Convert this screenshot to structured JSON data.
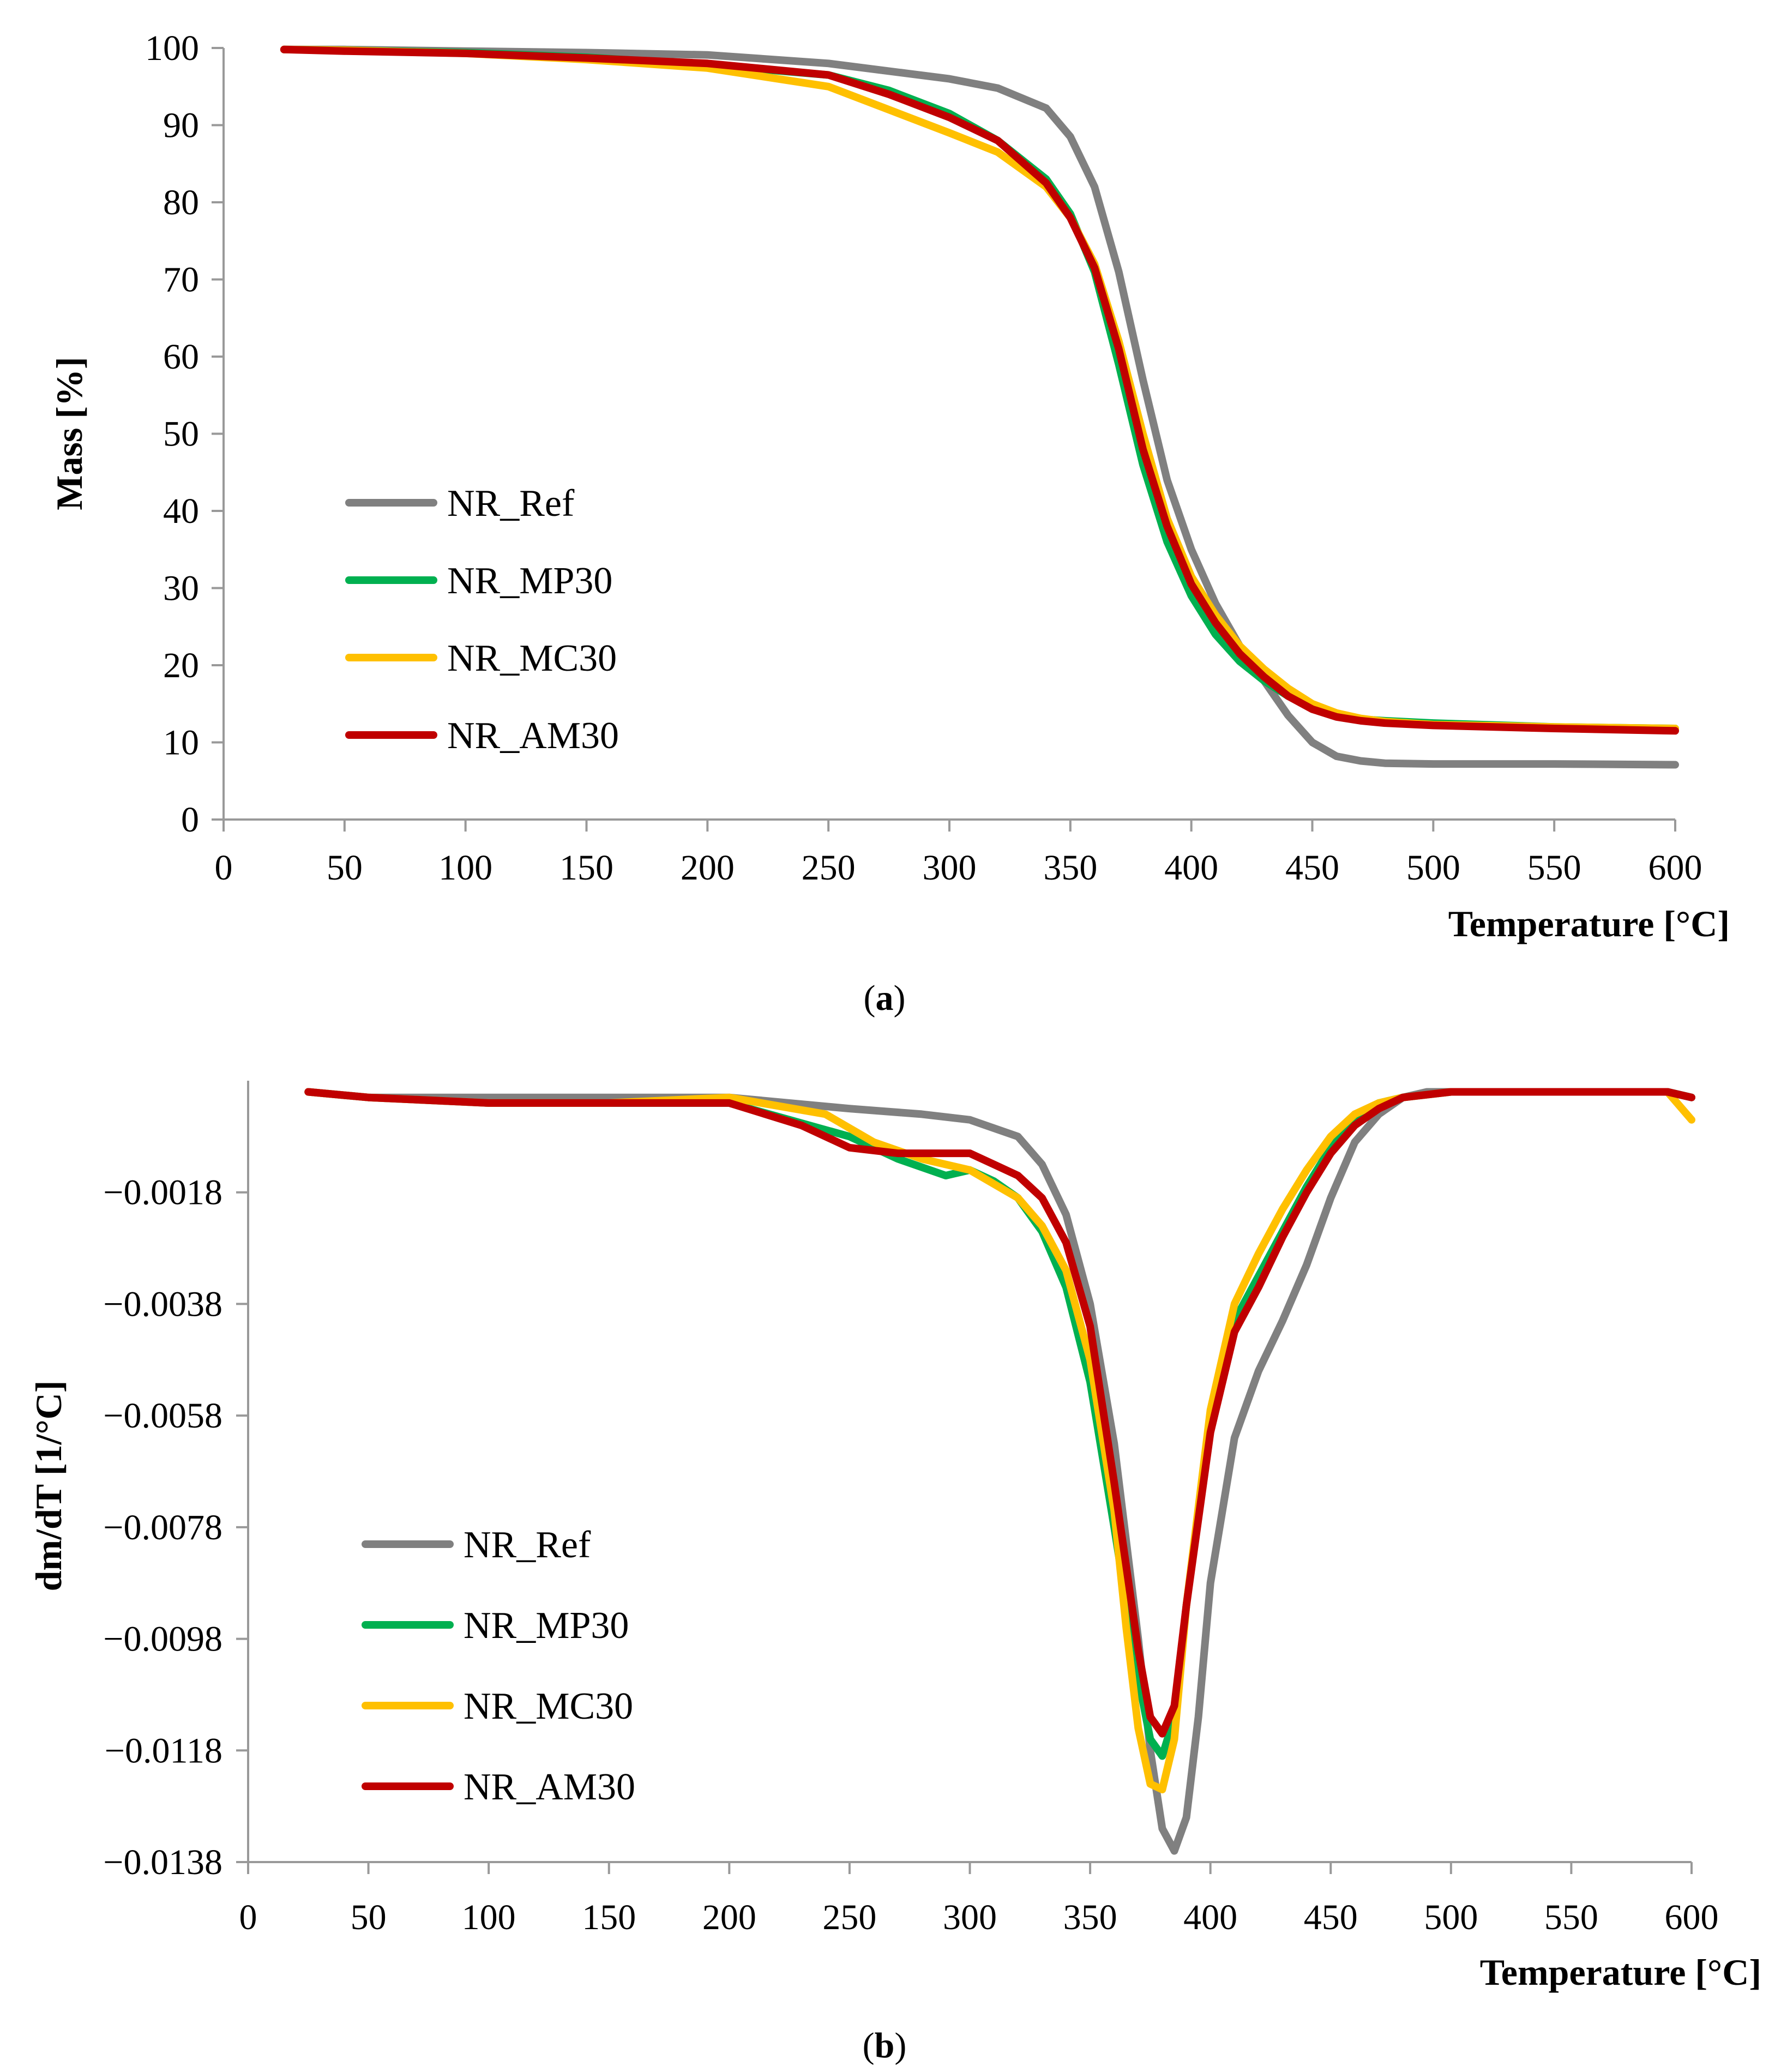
{
  "chart_data": [
    {
      "id": "a",
      "type": "line",
      "caption": "(a)",
      "caption_letter": "a",
      "xlabel": "Temperature [°C]",
      "ylabel": "Mass [%]",
      "xlim": [
        0,
        600
      ],
      "ylim": [
        0,
        100
      ],
      "xticks": [
        0,
        50,
        100,
        150,
        200,
        250,
        300,
        350,
        400,
        450,
        500,
        550,
        600
      ],
      "yticks": [
        0,
        10,
        20,
        30,
        40,
        50,
        60,
        70,
        80,
        90,
        100
      ],
      "ytick_labels": [
        "0",
        "10",
        "20",
        "30",
        "40",
        "50",
        "60",
        "70",
        "80",
        "90",
        "100"
      ],
      "legend_position": "center-left",
      "series": [
        {
          "name": "NR_Ref",
          "color": "#808080",
          "x": [
            25,
            50,
            100,
            150,
            200,
            250,
            300,
            320,
            340,
            350,
            360,
            370,
            380,
            390,
            400,
            410,
            420,
            430,
            440,
            450,
            460,
            470,
            480,
            500,
            550,
            600
          ],
          "y": [
            99.8,
            99.8,
            99.6,
            99.4,
            99.1,
            98.0,
            96.0,
            94.8,
            92.2,
            88.5,
            82.0,
            71.0,
            57.0,
            44.0,
            35.0,
            28.0,
            22.5,
            18.0,
            13.5,
            10.0,
            8.2,
            7.6,
            7.3,
            7.2,
            7.2,
            7.1
          ]
        },
        {
          "name": "NR_MP30",
          "color": "#00b050",
          "x": [
            25,
            50,
            100,
            150,
            200,
            250,
            275,
            300,
            320,
            340,
            350,
            360,
            370,
            380,
            390,
            400,
            410,
            420,
            430,
            440,
            450,
            460,
            470,
            480,
            500,
            550,
            600
          ],
          "y": [
            99.8,
            99.7,
            99.4,
            98.8,
            97.8,
            96.5,
            94.5,
            91.5,
            88.0,
            83.0,
            78.5,
            71.0,
            59.0,
            46.0,
            36.0,
            29.0,
            24.0,
            20.5,
            18.0,
            16.0,
            14.5,
            13.5,
            13.0,
            12.8,
            12.5,
            12.0,
            11.8
          ]
        },
        {
          "name": "NR_MC30",
          "color": "#ffc000",
          "x": [
            25,
            50,
            100,
            150,
            200,
            250,
            275,
            300,
            320,
            340,
            350,
            360,
            370,
            380,
            390,
            400,
            410,
            420,
            430,
            440,
            450,
            460,
            470,
            480,
            500,
            550,
            600
          ],
          "y": [
            99.8,
            99.7,
            99.3,
            98.5,
            97.4,
            95.0,
            92.0,
            89.0,
            86.5,
            82.0,
            78.0,
            72.0,
            62.0,
            50.0,
            39.0,
            31.5,
            26.5,
            22.5,
            19.5,
            17.0,
            15.0,
            13.8,
            13.1,
            12.7,
            12.3,
            12.0,
            11.8
          ]
        },
        {
          "name": "NR_AM30",
          "color": "#c00000",
          "x": [
            25,
            50,
            100,
            150,
            200,
            250,
            275,
            300,
            320,
            340,
            350,
            360,
            370,
            380,
            390,
            400,
            410,
            420,
            430,
            440,
            450,
            460,
            470,
            480,
            500,
            550,
            600
          ],
          "y": [
            99.8,
            99.6,
            99.3,
            98.7,
            98.0,
            96.5,
            94.0,
            91.0,
            88.0,
            82.5,
            78.0,
            71.5,
            61.0,
            48.0,
            38.0,
            30.5,
            25.5,
            21.5,
            18.5,
            16.0,
            14.3,
            13.3,
            12.8,
            12.5,
            12.2,
            11.8,
            11.5
          ]
        }
      ]
    },
    {
      "id": "b",
      "type": "line",
      "caption": "(b)",
      "caption_letter": "b",
      "xlabel": "Temperature [°C]",
      "ylabel": "dm/dT [1/°C]",
      "xlim": [
        0,
        600
      ],
      "ylim": [
        -0.0138,
        0.0002
      ],
      "xticks": [
        0,
        50,
        100,
        150,
        200,
        250,
        300,
        350,
        400,
        450,
        500,
        550,
        600
      ],
      "yticks": [
        -0.0018,
        -0.0038,
        -0.0058,
        -0.0078,
        -0.0098,
        -0.0118,
        -0.0138
      ],
      "ytick_labels": [
        "−0.0018",
        "−0.0038",
        "−0.0058",
        "−0.0078",
        "−0.0098",
        "−0.0118",
        "−0.0138"
      ],
      "legend_position": "center-left",
      "series": [
        {
          "name": "NR_Ref",
          "color": "#808080",
          "x": [
            25,
            50,
            100,
            150,
            200,
            250,
            280,
            300,
            320,
            330,
            340,
            350,
            360,
            370,
            375,
            380,
            385,
            390,
            395,
            400,
            410,
            420,
            430,
            440,
            450,
            460,
            470,
            480,
            490,
            500,
            550,
            590,
            600
          ],
          "y": [
            0,
            -0.0001,
            -0.0001,
            -0.0001,
            -0.0001,
            -0.0003,
            -0.0004,
            -0.0005,
            -0.0008,
            -0.0013,
            -0.0022,
            -0.0038,
            -0.0063,
            -0.0098,
            -0.0118,
            -0.0132,
            -0.0136,
            -0.013,
            -0.0112,
            -0.0088,
            -0.0062,
            -0.005,
            -0.0041,
            -0.0031,
            -0.0019,
            -0.0009,
            -0.0004,
            -0.0001,
            0,
            0,
            0,
            0,
            -0.0001
          ]
        },
        {
          "name": "NR_MP30",
          "color": "#00b050",
          "x": [
            25,
            50,
            100,
            150,
            200,
            250,
            270,
            290,
            300,
            310,
            320,
            330,
            340,
            350,
            360,
            370,
            375,
            380,
            385,
            390,
            400,
            410,
            420,
            430,
            440,
            450,
            460,
            470,
            480,
            500,
            550,
            590,
            600
          ],
          "y": [
            0,
            -0.0001,
            -0.0002,
            -0.0002,
            -0.0002,
            -0.0008,
            -0.0012,
            -0.0015,
            -0.0014,
            -0.0016,
            -0.0019,
            -0.0025,
            -0.0035,
            -0.0052,
            -0.0078,
            -0.0105,
            -0.0116,
            -0.0119,
            -0.0112,
            -0.0092,
            -0.0059,
            -0.0041,
            -0.0033,
            -0.0025,
            -0.0017,
            -0.001,
            -0.0005,
            -0.0002,
            -0.0001,
            0,
            0,
            0,
            -0.0001
          ]
        },
        {
          "name": "NR_MC30",
          "color": "#ffc000",
          "x": [
            25,
            50,
            100,
            150,
            200,
            240,
            260,
            280,
            300,
            320,
            330,
            340,
            350,
            360,
            365,
            370,
            375,
            380,
            385,
            390,
            400,
            410,
            420,
            430,
            440,
            450,
            460,
            470,
            480,
            500,
            550,
            590,
            600
          ],
          "y": [
            0,
            -0.0001,
            -0.0002,
            -0.0002,
            -0.0001,
            -0.0004,
            -0.0009,
            -0.0012,
            -0.0014,
            -0.0019,
            -0.0024,
            -0.0032,
            -0.0048,
            -0.0075,
            -0.0096,
            -0.0114,
            -0.0124,
            -0.0125,
            -0.0116,
            -0.0092,
            -0.0057,
            -0.0038,
            -0.0029,
            -0.0021,
            -0.0014,
            -0.0008,
            -0.0004,
            -0.0002,
            -0.0001,
            0,
            0,
            0,
            -0.0005
          ]
        },
        {
          "name": "NR_AM30",
          "color": "#c00000",
          "x": [
            25,
            50,
            100,
            150,
            200,
            230,
            250,
            270,
            290,
            300,
            310,
            320,
            330,
            340,
            350,
            360,
            370,
            375,
            380,
            385,
            390,
            400,
            410,
            420,
            430,
            440,
            450,
            460,
            470,
            480,
            500,
            550,
            590,
            600
          ],
          "y": [
            0,
            -0.0001,
            -0.0002,
            -0.0002,
            -0.0002,
            -0.0006,
            -0.001,
            -0.0011,
            -0.0011,
            -0.0011,
            -0.0013,
            -0.0015,
            -0.0019,
            -0.0027,
            -0.0042,
            -0.007,
            -0.01,
            -0.0112,
            -0.0115,
            -0.011,
            -0.0092,
            -0.0061,
            -0.0043,
            -0.0035,
            -0.0026,
            -0.0018,
            -0.0011,
            -0.0006,
            -0.0003,
            -0.0001,
            0,
            0,
            0,
            -0.0001
          ]
        }
      ]
    }
  ]
}
